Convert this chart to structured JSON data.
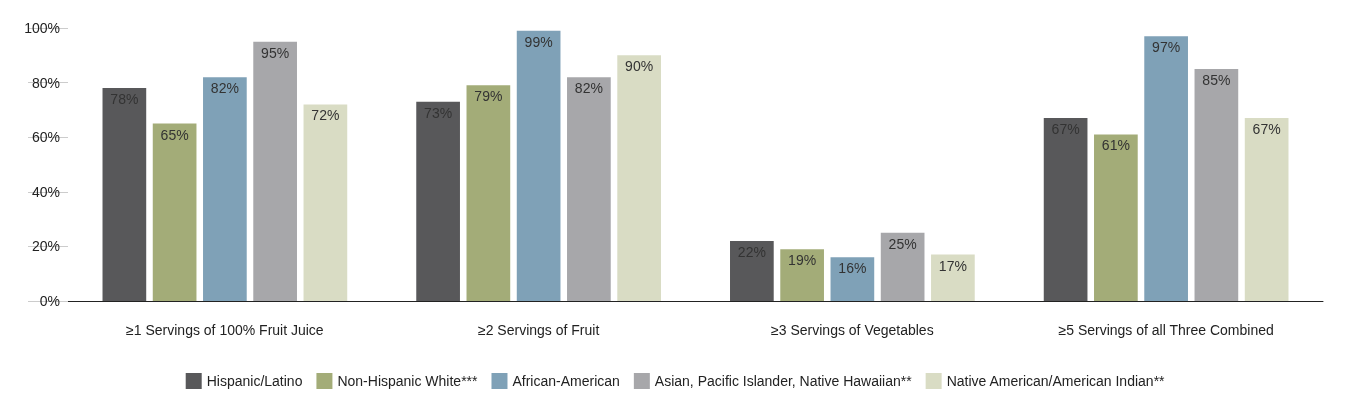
{
  "chart_data": {
    "type": "bar",
    "categories": [
      "≥1 Servings of 100% Fruit Juice",
      "≥2 Servings of Fruit",
      "≥3 Servings of Vegetables",
      "≥5 Servings of all Three Combined"
    ],
    "series": [
      {
        "name": "Hispanic/Latino",
        "color": "#58585a",
        "values": [
          78,
          73,
          22,
          67
        ],
        "value_labels": [
          "78%",
          "73%",
          "22%",
          "67%"
        ]
      },
      {
        "name": "Non-Hispanic White***",
        "color": "#a3ac78",
        "values": [
          65,
          79,
          19,
          61
        ],
        "value_labels": [
          "65%",
          "79%",
          "19%",
          "61%"
        ]
      },
      {
        "name": "African-American",
        "color": "#7fa1b7",
        "values": [
          82,
          99,
          16,
          97
        ],
        "value_labels": [
          "82%",
          "99%",
          "16%",
          "97%"
        ]
      },
      {
        "name": "Asian, Pacific Islander, Native Hawaiian**",
        "color": "#a7a7aa",
        "values": [
          95,
          82,
          25,
          85
        ],
        "value_labels": [
          "95%",
          "82%",
          "25%",
          "85%"
        ]
      },
      {
        "name": "Native American/American Indian**",
        "color": "#d9dcc4",
        "values": [
          72,
          90,
          17,
          67
        ],
        "value_labels": [
          "72%",
          "90%",
          "17%",
          "67%"
        ]
      }
    ],
    "ylim": [
      0,
      100
    ],
    "yticks": [
      {
        "value": 0,
        "label": "0%"
      },
      {
        "value": 20,
        "label": "20%"
      },
      {
        "value": 40,
        "label": "40%"
      },
      {
        "value": 60,
        "label": "60%"
      },
      {
        "value": 80,
        "label": "80%"
      },
      {
        "value": 100,
        "label": "100%"
      }
    ],
    "legend": "bottom"
  }
}
